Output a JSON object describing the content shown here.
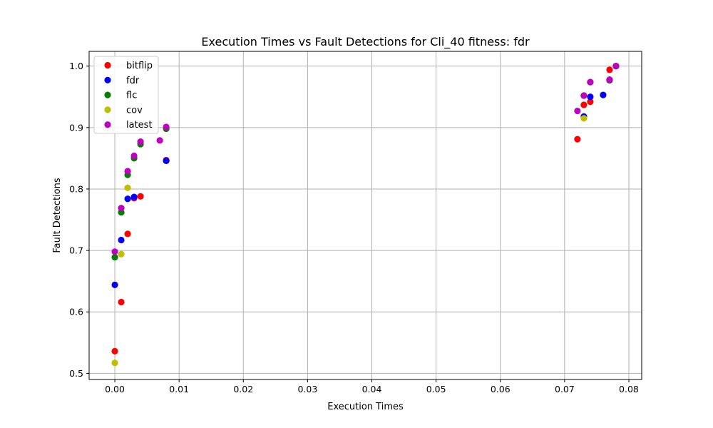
{
  "chart_data": {
    "type": "scatter",
    "title": "Execution Times vs Fault Detections for Cli_40 fitness: fdr",
    "xlabel": "Execution Times",
    "ylabel": "Fault Detections",
    "xlim": [
      -0.004,
      0.082
    ],
    "ylim": [
      0.49,
      1.024
    ],
    "xticks": [
      0.0,
      0.01,
      0.02,
      0.03,
      0.04,
      0.05,
      0.06,
      0.07,
      0.08
    ],
    "xtick_labels": [
      "0.00",
      "0.01",
      "0.02",
      "0.03",
      "0.04",
      "0.05",
      "0.06",
      "0.07",
      "0.08"
    ],
    "yticks": [
      0.5,
      0.6,
      0.7,
      0.8,
      0.9,
      1.0
    ],
    "ytick_labels": [
      "0.5",
      "0.6",
      "0.7",
      "0.8",
      "0.9",
      "1.0"
    ],
    "grid": true,
    "legend_position": "top-left",
    "series": [
      {
        "name": "bitflip",
        "color": "#ff0000",
        "points": [
          [
            0.0,
            0.536
          ],
          [
            0.001,
            0.616
          ],
          [
            0.002,
            0.727
          ],
          [
            0.003,
            0.785
          ],
          [
            0.004,
            0.788
          ],
          [
            0.008,
            0.846
          ],
          [
            0.008,
            0.847
          ],
          [
            0.072,
            0.881
          ],
          [
            0.073,
            0.937
          ],
          [
            0.074,
            0.942
          ],
          [
            0.077,
            0.994
          ],
          [
            0.078,
            1.0
          ]
        ]
      },
      {
        "name": "fdr",
        "color": "#0000ff",
        "points": [
          [
            0.0,
            0.644
          ],
          [
            0.001,
            0.717
          ],
          [
            0.002,
            0.784
          ],
          [
            0.003,
            0.787
          ],
          [
            0.008,
            0.846
          ],
          [
            0.073,
            0.918
          ],
          [
            0.074,
            0.95
          ],
          [
            0.076,
            0.953
          ],
          [
            0.077,
            0.977
          ],
          [
            0.078,
            1.0
          ]
        ]
      },
      {
        "name": "flc",
        "color": "#008000",
        "points": [
          [
            0.0,
            0.689
          ],
          [
            0.001,
            0.762
          ],
          [
            0.002,
            0.823
          ],
          [
            0.003,
            0.85
          ],
          [
            0.004,
            0.873
          ],
          [
            0.008,
            0.898
          ],
          [
            0.073,
            0.952
          ],
          [
            0.074,
            0.974
          ],
          [
            0.077,
            0.977
          ],
          [
            0.078,
            1.0
          ]
        ]
      },
      {
        "name": "cov",
        "color": "#bfbf00",
        "points": [
          [
            0.0,
            0.517
          ],
          [
            0.001,
            0.694
          ],
          [
            0.002,
            0.802
          ],
          [
            0.073,
            0.915
          ]
        ]
      },
      {
        "name": "latest",
        "color": "#bf00bf",
        "points": [
          [
            0.0,
            0.698
          ],
          [
            0.001,
            0.769
          ],
          [
            0.002,
            0.829
          ],
          [
            0.003,
            0.854
          ],
          [
            0.004,
            0.877
          ],
          [
            0.007,
            0.879
          ],
          [
            0.008,
            0.901
          ],
          [
            0.072,
            0.927
          ],
          [
            0.073,
            0.952
          ],
          [
            0.074,
            0.974
          ],
          [
            0.077,
            0.978
          ],
          [
            0.078,
            1.0
          ]
        ]
      }
    ]
  }
}
